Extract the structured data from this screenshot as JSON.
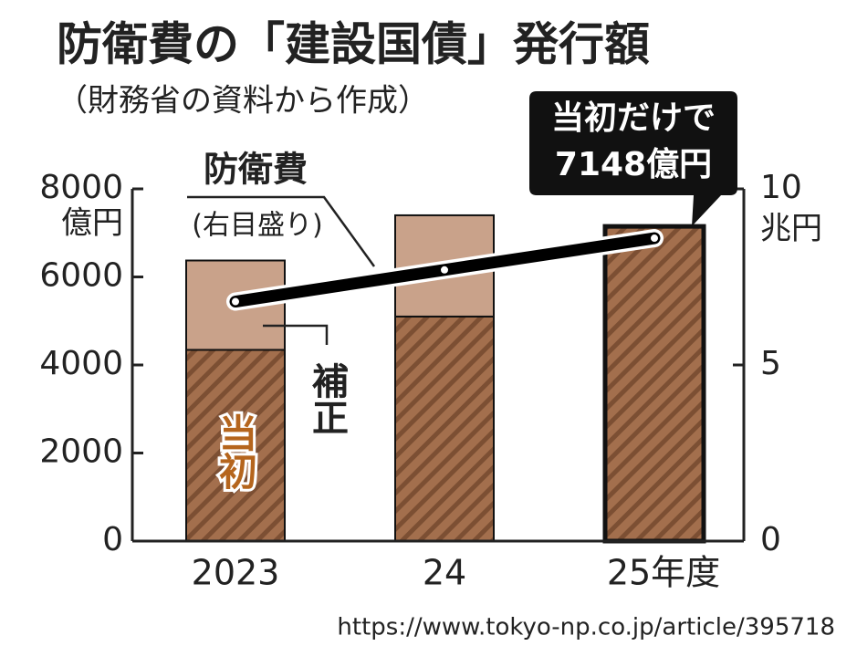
{
  "chart_data": {
    "type": "bar",
    "title": "防衛費の「建設国債」発行額",
    "subtitle": "（財務省の資料から作成）",
    "categories": [
      "2023",
      "24",
      "25年度"
    ],
    "series": [
      {
        "name": "当初",
        "color": "#a36f4d",
        "values": [
          4343,
          5100,
          7148
        ]
      },
      {
        "name": "補正",
        "color": "#c9a28a",
        "values": [
          2030,
          2300,
          null
        ]
      },
      {
        "name": "防衛費",
        "type": "line",
        "axis": "y2",
        "color": "#000000",
        "values": [
          6.8,
          7.7,
          8.6
        ]
      }
    ],
    "ylim": [
      0,
      8000
    ],
    "yticks": [
      0,
      2000,
      4000,
      6000,
      8000
    ],
    "y_unit": "億円",
    "y2lim": [
      0,
      10
    ],
    "y2ticks": [
      0,
      5,
      10
    ],
    "y2_unit": "兆円",
    "annotations": [
      "(右目盛り)",
      "当初だけで",
      "7148億円"
    ],
    "source": "https://www.tokyo-np.co.jp/article/395718"
  }
}
